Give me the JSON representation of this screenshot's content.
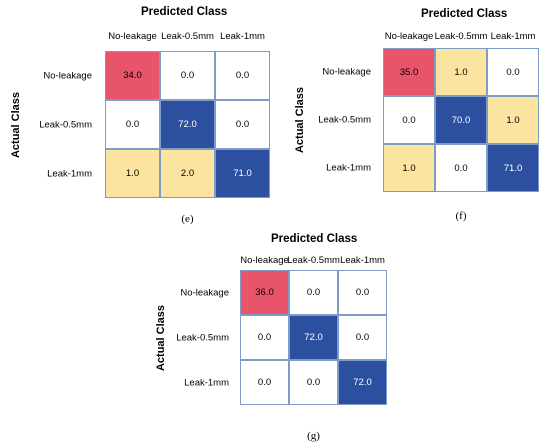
{
  "chart_data": [
    {
      "type": "heatmap",
      "caption": "(e)",
      "title": "Predicted Class",
      "xlabel": "Predicted Class",
      "ylabel": "Actual Class",
      "x_categories": [
        "No-leakage",
        "Leak-0.5mm",
        "Leak-1mm"
      ],
      "y_categories": [
        "No-leakage",
        "Leak-0.5mm",
        "Leak-1mm"
      ],
      "values": [
        [
          34.0,
          0.0,
          0.0
        ],
        [
          0.0,
          72.0,
          0.0
        ],
        [
          1.0,
          2.0,
          71.0
        ]
      ],
      "value_labels": [
        [
          "34.0",
          "0.0",
          "0.0"
        ],
        [
          "0.0",
          "72.0",
          "0.0"
        ],
        [
          "1.0",
          "2.0",
          "71.0"
        ]
      ]
    },
    {
      "type": "heatmap",
      "caption": "(f)",
      "title": "Predicted Class",
      "xlabel": "Predicted Class",
      "ylabel": "Actual Class",
      "x_categories": [
        "No-leakage",
        "Leak-0.5mm",
        "Leak-1mm"
      ],
      "y_categories": [
        "No-leakage",
        "Leak-0.5mm",
        "Leak-1mm"
      ],
      "values": [
        [
          35.0,
          1.0,
          0.0
        ],
        [
          0.0,
          70.0,
          1.0
        ],
        [
          1.0,
          0.0,
          71.0
        ]
      ],
      "value_labels": [
        [
          "35.0",
          "1.0",
          "0.0"
        ],
        [
          "0.0",
          "70.0",
          "1.0"
        ],
        [
          "1.0",
          "0.0",
          "71.0"
        ]
      ]
    },
    {
      "type": "heatmap",
      "caption": "(g)",
      "title": "Predicted Class",
      "xlabel": "Predicted Class",
      "ylabel": "Actual Class",
      "x_categories": [
        "No-leakage",
        "Leak-0.5mm",
        "Leak-1mm"
      ],
      "y_categories": [
        "No-leakage",
        "Leak-0.5mm",
        "Leak-1mm"
      ],
      "values": [
        [
          36.0,
          0.0,
          0.0
        ],
        [
          0.0,
          72.0,
          0.0
        ],
        [
          0.0,
          0.0,
          72.0
        ]
      ],
      "value_labels": [
        [
          "36.0",
          "0.0",
          "0.0"
        ],
        [
          "0.0",
          "72.0",
          "0.0"
        ],
        [
          "0.0",
          "0.0",
          "72.0"
        ]
      ]
    }
  ],
  "colors": {
    "correct_no_leakage": "#e8556a",
    "correct_leak": "#2c4f9f",
    "misclassified": "#fbe3a0",
    "zero": "#ffffff",
    "grid_line": "#7f9cc7"
  }
}
